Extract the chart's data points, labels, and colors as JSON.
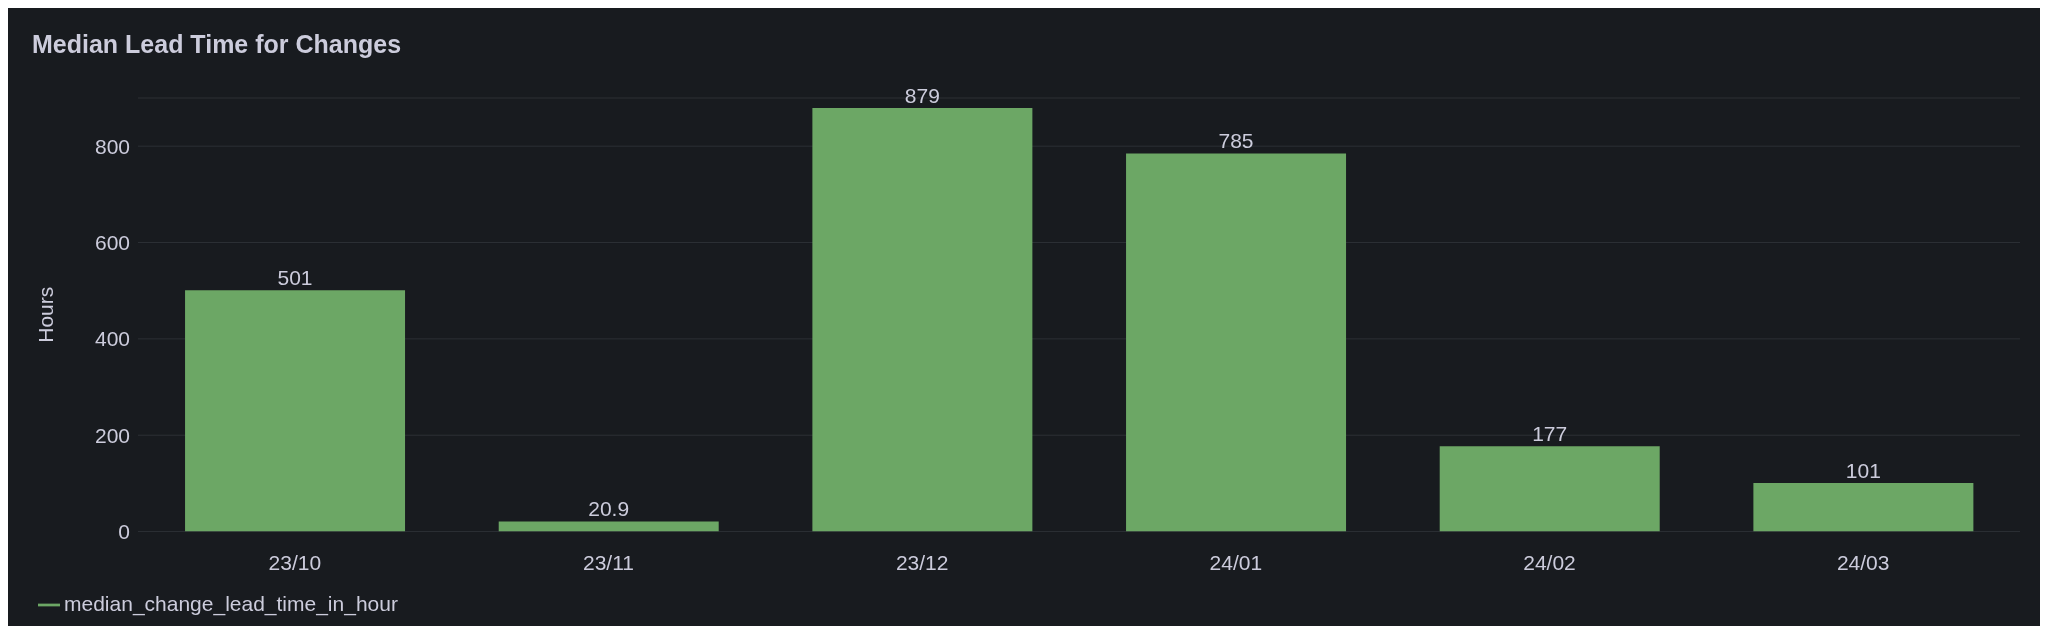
{
  "chart_data": {
    "type": "bar",
    "title": "Median Lead Time for Changes",
    "ylabel": "Hours",
    "categories": [
      "23/10",
      "23/11",
      "23/12",
      "24/01",
      "24/02",
      "24/03"
    ],
    "series": [
      {
        "name": "median_change_lead_time_in_hour",
        "color": "#6ca765",
        "values": [
          501,
          20.9,
          879,
          785,
          177,
          101
        ]
      }
    ],
    "ylim": [
      0,
      900
    ],
    "yticks": [
      0,
      200,
      400,
      600,
      800
    ],
    "grid": "y",
    "legend": "bottom left",
    "data_labels": true
  }
}
